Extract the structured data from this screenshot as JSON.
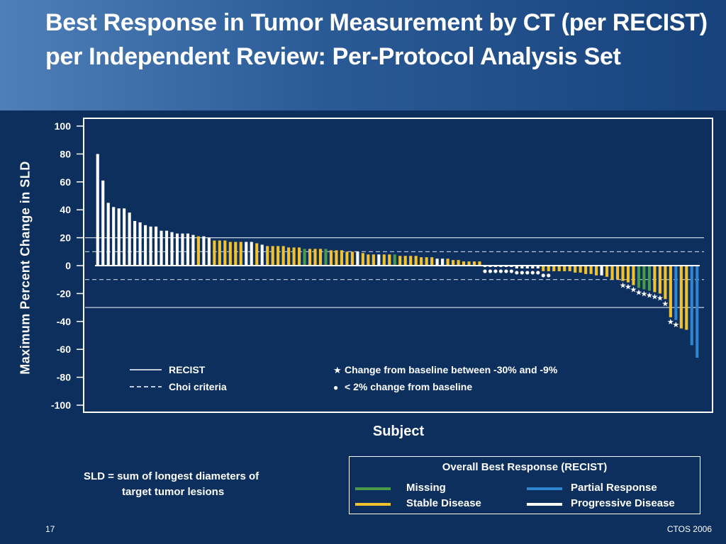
{
  "slide": {
    "title": "Best Response in Tumor Measurement by CT (per RECIST) per Independent Review: Per-Protocol Analysis Set",
    "note_line1": "SLD = sum of longest diameters of",
    "note_line2": "target tumor lesions",
    "page_number": "17",
    "footer_right": "CTOS 2006"
  },
  "chart_data": {
    "type": "bar",
    "title": "",
    "xlabel": "Subject",
    "ylabel": "Maximum Percent Change in SLD",
    "ylim": [
      -100,
      100
    ],
    "yticks": [
      "100",
      "80",
      "60",
      "40",
      "20",
      "0",
      "-20",
      "-40",
      "-60",
      "-80",
      "-100"
    ],
    "reference_lines": [
      {
        "name": "RECIST",
        "style": "solid",
        "values": [
          20,
          -30
        ]
      },
      {
        "name": "Choi criteria",
        "style": "dashed",
        "values": [
          10,
          -10
        ]
      }
    ],
    "marker_legend": [
      {
        "symbol": "★",
        "label": "Change from baseline between -30% and -9%"
      },
      {
        "symbol": "●",
        "label": "< 2% change from baseline"
      }
    ],
    "legend_title": "Overall Best Response (RECIST)",
    "legend": [
      {
        "key": "M",
        "label": "Missing",
        "color": "#4a9a4a"
      },
      {
        "key": "S",
        "label": "Stable Disease",
        "color": "#f2c22e"
      },
      {
        "key": "P",
        "label": "Partial Response",
        "color": "#2f86cf"
      },
      {
        "key": "D",
        "label": "Progressive Disease",
        "color": "#ffffff"
      }
    ],
    "values": [
      80,
      61,
      45,
      42,
      41,
      41,
      38,
      32,
      31,
      29,
      28,
      28,
      25,
      25,
      24,
      23,
      23,
      23,
      22,
      21,
      21,
      20,
      18,
      18,
      18,
      17,
      17,
      17,
      17,
      17,
      16,
      15,
      14,
      14,
      14,
      14,
      13,
      13,
      13,
      12,
      12,
      12,
      12,
      12,
      11,
      11,
      11,
      10,
      10,
      10,
      9,
      8,
      8,
      8,
      8,
      8,
      8,
      7,
      7,
      7,
      7,
      6,
      6,
      6,
      5,
      5,
      5,
      4,
      4,
      3,
      3,
      3,
      3,
      -1,
      -1,
      -1,
      -1,
      -1,
      -1,
      -2,
      -2,
      -2,
      -2,
      -2,
      -4,
      -4,
      -4,
      -4,
      -4,
      -4,
      -5,
      -5,
      -6,
      -6,
      -7,
      -7,
      -8,
      -10,
      -10,
      -11,
      -12,
      -14,
      -16,
      -17,
      -18,
      -19,
      -20,
      -24,
      -37,
      -39,
      -45,
      -46,
      -57,
      -66
    ],
    "responses": [
      "D",
      "D",
      "D",
      "D",
      "D",
      "D",
      "D",
      "D",
      "D",
      "D",
      "D",
      "D",
      "D",
      "D",
      "D",
      "D",
      "D",
      "D",
      "D",
      "S",
      "D",
      "D",
      "S",
      "S",
      "S",
      "S",
      "S",
      "S",
      "D",
      "D",
      "S",
      "D",
      "S",
      "S",
      "S",
      "S",
      "S",
      "S",
      "S",
      "M",
      "S",
      "S",
      "S",
      "M",
      "S",
      "S",
      "S",
      "S",
      "S",
      "D",
      "S",
      "S",
      "S",
      "D",
      "S",
      "S",
      "M",
      "S",
      "S",
      "S",
      "S",
      "S",
      "S",
      "S",
      "D",
      "D",
      "S",
      "S",
      "S",
      "S",
      "S",
      "S",
      "S",
      "D",
      "D",
      "D",
      "D",
      "D",
      "D",
      "D",
      "D",
      "D",
      "D",
      "D",
      "S",
      "S",
      "S",
      "S",
      "S",
      "S",
      "S",
      "S",
      "S",
      "S",
      "S",
      "D",
      "S",
      "S",
      "S",
      "S",
      "S",
      "S",
      "M",
      "M",
      "M",
      "S",
      "S",
      "S",
      "S",
      "P",
      "S",
      "S",
      "P",
      "P"
    ],
    "markers": [
      "",
      "",
      "",
      "",
      "",
      "",
      "",
      "",
      "",
      "",
      "",
      "",
      "",
      "",
      "",
      "",
      "",
      "",
      "",
      "",
      "",
      "",
      "",
      "",
      "",
      "",
      "",
      "",
      "",
      "",
      "",
      "",
      "",
      "",
      "",
      "",
      "",
      "",
      "",
      "",
      "",
      "",
      "",
      "",
      "",
      "",
      "",
      "",
      "",
      "",
      "",
      "",
      "",
      "",
      "",
      "",
      "",
      "",
      "",
      "",
      "",
      "",
      "",
      "",
      "",
      "",
      "",
      "",
      "",
      "",
      "",
      "",
      "",
      "dot",
      "dot",
      "dot",
      "dot",
      "dot",
      "dot",
      "dot",
      "dot",
      "dot",
      "dot",
      "dot",
      "dot",
      "dot",
      "",
      "",
      "",
      "",
      "",
      "",
      "",
      "",
      "",
      "",
      "",
      "",
      "",
      "star",
      "star",
      "star",
      "star",
      "star",
      "star",
      "star",
      "star",
      "star",
      "star",
      "star",
      "",
      "",
      "",
      "",
      "",
      ""
    ]
  }
}
